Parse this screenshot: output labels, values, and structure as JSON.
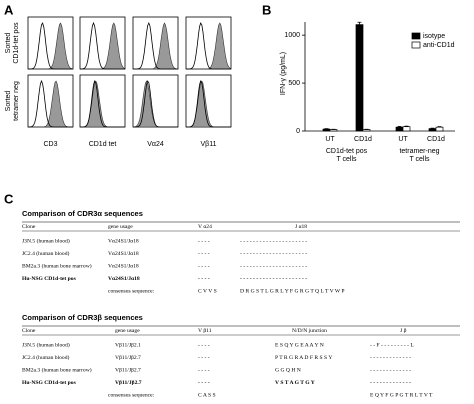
{
  "panel_a": {
    "label": "A",
    "row_labels": [
      [
        "Sorted",
        "CD1d-tet pos"
      ],
      [
        "Sorted",
        "tetramer neg"
      ]
    ],
    "col_labels": [
      "CD3",
      "CD1d tet",
      "Vα24",
      "Vβ11"
    ]
  },
  "chart_data": {
    "type": "bar",
    "label": "B",
    "ylabel": "IFN-γ (pg/mL)",
    "ylim": [
      0,
      1200
    ],
    "yticks": [
      0,
      500,
      1000
    ],
    "categories": [
      "UT",
      "CD1d",
      "UT",
      "CD1d"
    ],
    "groups": [
      {
        "lines": [
          "CD1d-tet pos",
          "T cells"
        ]
      },
      {
        "lines": [
          "tetramer-neg",
          "T cells"
        ]
      }
    ],
    "series": [
      {
        "name": "isotype",
        "color": "#000000",
        "values": [
          20,
          1110,
          40,
          25
        ],
        "errors": [
          5,
          25,
          8,
          5
        ]
      },
      {
        "name": "anti-CD1d",
        "color": "#ffffff",
        "values": [
          15,
          15,
          45,
          40
        ],
        "errors": [
          3,
          3,
          6,
          5
        ]
      }
    ]
  },
  "panel_c": {
    "label": "C",
    "alpha": {
      "title": "Comparison of CDR3α sequences",
      "headers": [
        "Clone",
        "gene usage",
        "V α24",
        "J α18"
      ],
      "rows": [
        [
          "J3N.5 (human blood)",
          "Vα24S1/Jα18",
          "- - - -",
          "- - - - - - - - - - - - - - - - - - - - -"
        ],
        [
          "JC2.4 (human blood)",
          "Vα24S1/Jα18",
          "- - - -",
          "- - - - - - - - - - - - - - - - - - - - -"
        ],
        [
          "BM2a.3 (human bone marrow)",
          "Vα24S1/Jα18",
          "- - - -",
          "- - - - - - - - - - - - - - - - - - - - -"
        ],
        [
          "Hu-NSG CD1d-tet pos",
          "Vα24S1/Jα18",
          "- - - -",
          "- - - - - - - - - - - - - - - - - - - - -"
        ]
      ],
      "consensus_label": "consensus sequence:",
      "consensus": [
        "C V V S",
        "D R G S T L G R L Y F G R G T Q L T V W P"
      ]
    },
    "beta": {
      "title": "Comparison of CDR3β sequences",
      "headers": [
        "Clone",
        "gene usage",
        "V β11",
        "N/D/N junction",
        "J β"
      ],
      "rows": [
        [
          "J3N.5 (human blood)",
          "Vβ11/Jβ2.1",
          "- - - -",
          "E S Q Y G E A A Y N",
          "- - F - - - - - - - - - L"
        ],
        [
          "JC2.4 (human blood)",
          "Vβ11/Jβ2.7",
          "- - - -",
          "P T R G R A D F R S S Y",
          "- - - - - - - - - - - - -"
        ],
        [
          "BM2a.3 (human bone marrow)",
          "Vβ11/Jβ2.7",
          "- - - -",
          "G G Q H N",
          "- - - - - - - - - - - - -"
        ],
        [
          "Hu-NSG CD1d-tet pos",
          "Vβ11/Jβ2.7",
          "- - - -",
          "V S T A G T G Y",
          "- - - - - - - - - - - - -"
        ]
      ],
      "consensus_label": "consensus sequence:",
      "consensus": [
        "C A S S",
        "",
        "E Q Y F G P G T R L T V T"
      ]
    }
  }
}
